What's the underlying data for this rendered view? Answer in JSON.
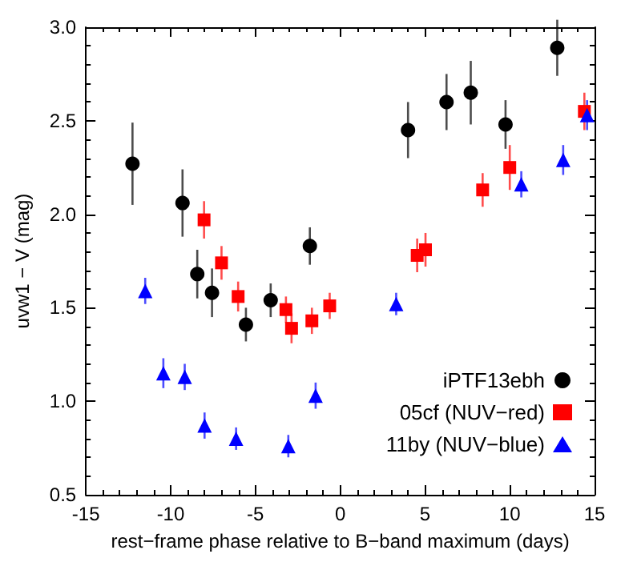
{
  "chart_data": {
    "type": "scatter",
    "xlabel": "rest−frame phase relative to B−band maximum (days)",
    "ylabel": "uvw1 − V (mag)",
    "xlim": [
      -15,
      15
    ],
    "xticks": [
      -15,
      -10,
      -5,
      0,
      5,
      10,
      15
    ],
    "ylim": [
      0.5,
      3.0
    ],
    "yticks": [
      {
        "value": 0.5,
        "label": "0.5"
      },
      {
        "value": 1.0,
        "label": "1.0"
      },
      {
        "value": 1.5,
        "label": "1.5"
      },
      {
        "value": 2.0,
        "label": "2.0"
      },
      {
        "value": 2.5,
        "label": "2.5"
      },
      {
        "value": 3.0,
        "label": "3.0"
      }
    ],
    "grid": false,
    "legend": "bottom right",
    "series": [
      {
        "name": "iPTF13ebh",
        "color": "#000000",
        "marker": "circle",
        "x": [
          -12.25,
          -9.3,
          -8.43,
          -7.56,
          -5.56,
          -4.1,
          -1.79,
          4.0,
          6.27,
          7.7,
          9.75,
          12.8
        ],
        "values": [
          2.27,
          2.06,
          1.68,
          1.58,
          1.41,
          1.54,
          1.83,
          2.45,
          2.6,
          2.65,
          2.48,
          2.89
        ],
        "errors": [
          0.22,
          0.18,
          0.13,
          0.13,
          0.09,
          0.09,
          0.1,
          0.15,
          0.15,
          0.17,
          0.13,
          0.15
        ]
      },
      {
        "name": "05cf (NUV−red)",
        "color": "#ff0000",
        "marker": "square",
        "x": [
          -8.03,
          -7.0,
          -6.02,
          -3.2,
          -2.87,
          -1.67,
          -0.62,
          4.54,
          5.03,
          8.4,
          10.0,
          14.4
        ],
        "values": [
          1.97,
          1.74,
          1.56,
          1.49,
          1.39,
          1.43,
          1.51,
          1.78,
          1.81,
          2.13,
          2.25,
          2.55
        ],
        "errors": [
          0.1,
          0.09,
          0.08,
          0.07,
          0.08,
          0.07,
          0.07,
          0.09,
          0.09,
          0.09,
          0.12,
          0.1
        ]
      },
      {
        "name": "11by (NUV−blue)",
        "color": "#0000ff",
        "marker": "triangle",
        "x": [
          -11.5,
          -10.43,
          -9.17,
          -8.0,
          -6.14,
          -3.06,
          -1.45,
          3.3,
          10.68,
          13.15,
          14.56
        ],
        "values": [
          1.59,
          1.15,
          1.13,
          0.87,
          0.8,
          0.76,
          1.03,
          1.52,
          2.16,
          2.29,
          2.53
        ],
        "errors": [
          0.07,
          0.08,
          0.07,
          0.07,
          0.06,
          0.06,
          0.07,
          0.06,
          0.07,
          0.08,
          0.08
        ]
      }
    ]
  }
}
